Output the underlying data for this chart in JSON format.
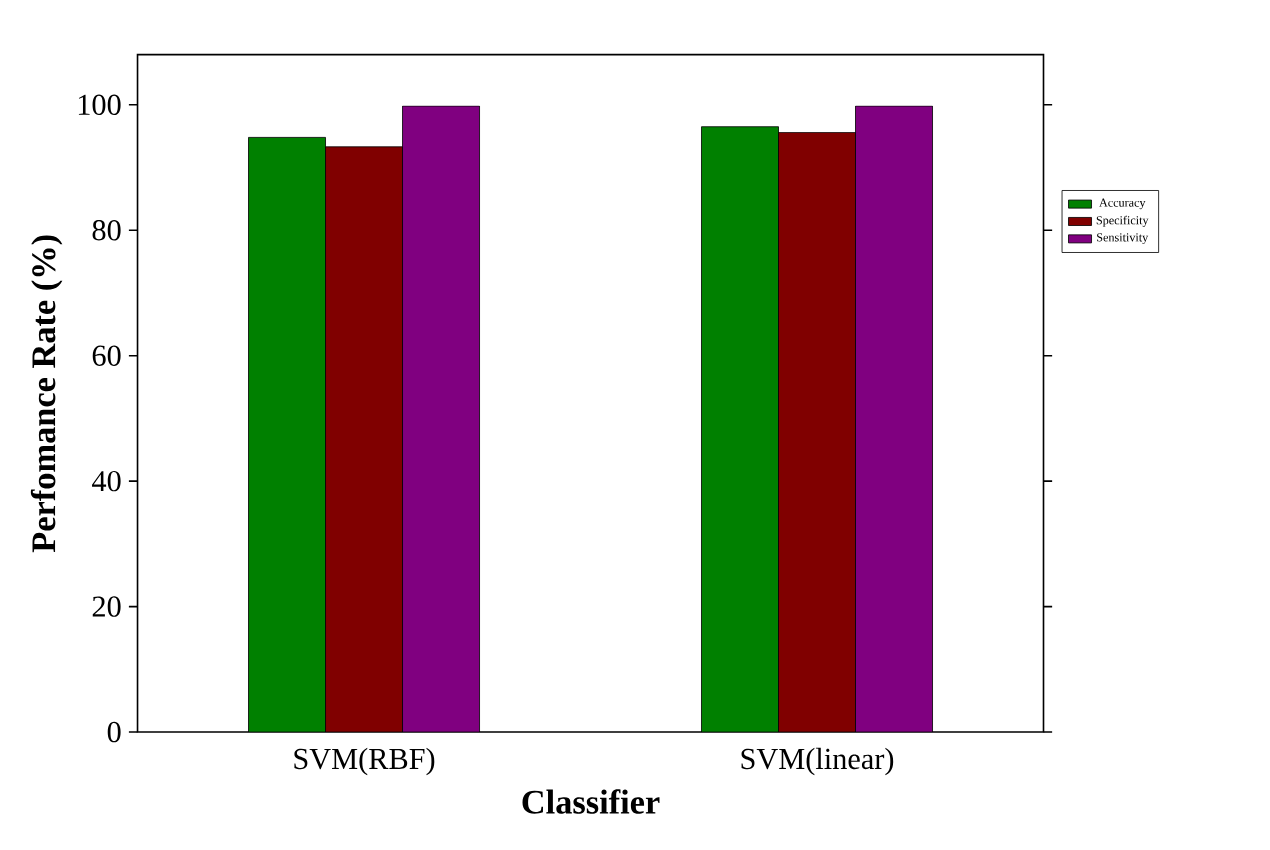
{
  "chart_data": {
    "type": "bar",
    "xlabel": "Classifier",
    "ylabel": "Perfomance Rate (%)",
    "categories": [
      "SVM(RBF)",
      "SVM(linear)"
    ],
    "series": [
      {
        "name": "Accuracy",
        "color": "#008000",
        "values": [
          94.8,
          96.5
        ]
      },
      {
        "name": "Specificity",
        "color": "#800000",
        "values": [
          93.3,
          95.6
        ]
      },
      {
        "name": "Sensitivity",
        "color": "#800080",
        "values": [
          99.8,
          99.8
        ]
      }
    ],
    "ylim": [
      0,
      108
    ],
    "yticks": [
      0,
      20,
      40,
      60,
      80,
      100
    ],
    "grid": false,
    "legend": "right"
  }
}
